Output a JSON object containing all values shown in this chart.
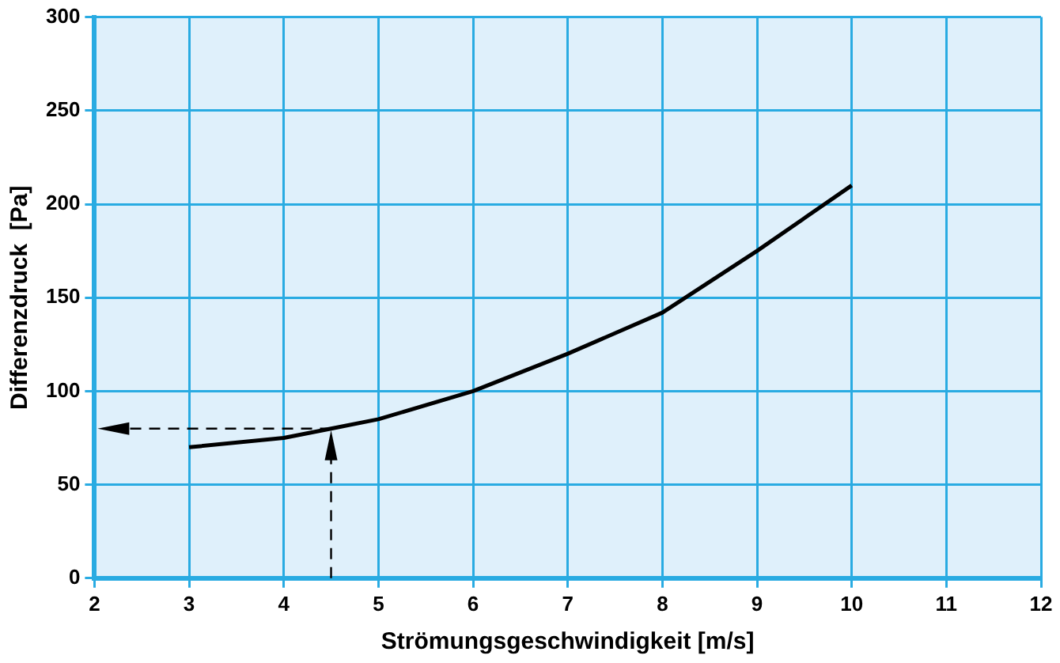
{
  "chart_data": {
    "type": "line",
    "xlabel": "Strömungsgeschwindigkeit [m/s]",
    "ylabel": "Differenzdruck  [Pa]",
    "x": [
      3,
      4,
      4.5,
      5,
      6,
      7,
      8,
      9,
      10
    ],
    "series": [
      {
        "color": "#000000",
        "values": [
          70,
          75,
          80,
          85,
          100,
          120,
          142,
          175,
          210
        ]
      }
    ],
    "xlim": [
      2,
      12
    ],
    "xticks": [
      2,
      3,
      4,
      5,
      6,
      7,
      8,
      9,
      10,
      11,
      12
    ],
    "ylim": [
      0,
      300
    ],
    "yticks": [
      0,
      50,
      100,
      150,
      200,
      250,
      300
    ],
    "grid": true,
    "legend": false,
    "marker": "none",
    "line_style": "solid"
  }
}
